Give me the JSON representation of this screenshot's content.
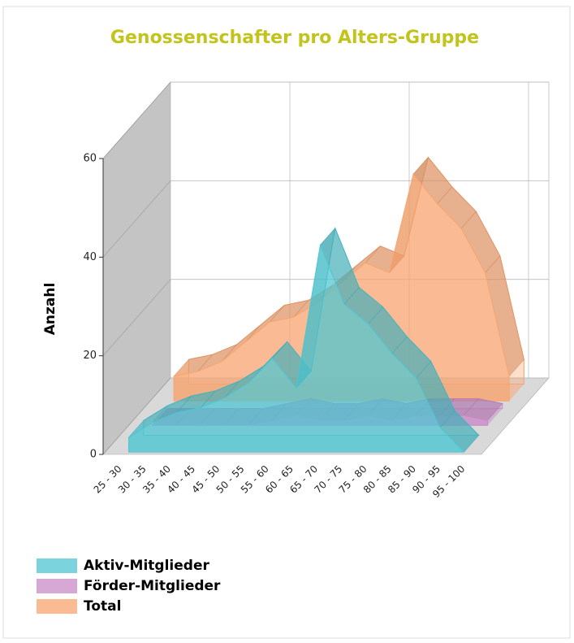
{
  "chart_data": {
    "type": "area3d",
    "title": "Genossenschafter pro Alters-Gruppe",
    "y_label": "Anzahl",
    "categories": [
      "25 - 30",
      "30 - 35",
      "35 - 40",
      "40 - 45",
      "45 - 50",
      "50 - 55",
      "55 - 60",
      "60 - 65",
      "65 - 70",
      "70 - 75",
      "75 - 80",
      "80 - 85",
      "85 - 90",
      "90 - 95",
      "95 - 100"
    ],
    "series": [
      {
        "name": "Aktiv-Mitglieder",
        "color": "#4fc6d2",
        "values": [
          3,
          6,
          8,
          9,
          11,
          14,
          19,
          13,
          42,
          30,
          26,
          20,
          15,
          5,
          0
        ]
      },
      {
        "name": "Förder-Mitglieder",
        "color": "#c98ac8",
        "values": [
          0,
          0,
          0,
          0,
          0,
          1,
          2,
          1,
          1,
          2,
          1,
          2,
          2,
          2,
          1
        ]
      },
      {
        "name": "Total",
        "color": "#f9a46e",
        "values": [
          5,
          6,
          8,
          12,
          16,
          17,
          20,
          24,
          28,
          26,
          46,
          40,
          35,
          26,
          5
        ]
      }
    ],
    "ylim": [
      0,
      60
    ],
    "yticks": [
      0,
      20,
      40,
      60
    ],
    "grid": true
  }
}
